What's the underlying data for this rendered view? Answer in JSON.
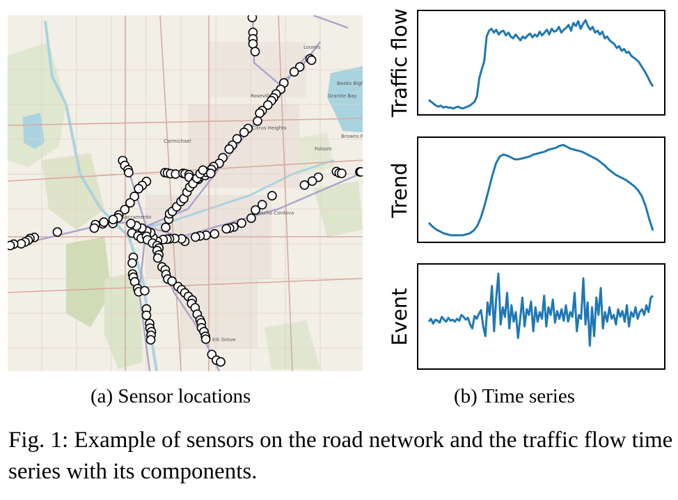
{
  "map": {
    "labels": [
      "Loomis",
      "Roseville",
      "Citrus Heights",
      "Folsom",
      "Granite Bay",
      "Beeks Bight",
      "Browns Ravine",
      "Rancho Cordova",
      "Sacramento",
      "Elk Grove",
      "Carmichael"
    ],
    "colors": {
      "land": "#f2efe6",
      "water": "#a9d3df",
      "park": "#cfe0b8",
      "highway": "#a9a3cf",
      "road": "#d9a9a0"
    },
    "sensors": [
      [
        0.689,
        0.006
      ],
      [
        0.691,
        0.048
      ],
      [
        0.691,
        0.066
      ],
      [
        0.691,
        0.08
      ],
      [
        0.697,
        0.102
      ],
      [
        0.852,
        0.122
      ],
      [
        0.856,
        0.126
      ],
      [
        0.823,
        0.145
      ],
      [
        0.807,
        0.159
      ],
      [
        0.778,
        0.19
      ],
      [
        0.769,
        0.208
      ],
      [
        0.756,
        0.221
      ],
      [
        0.749,
        0.232
      ],
      [
        0.743,
        0.24
      ],
      [
        0.733,
        0.252
      ],
      [
        0.717,
        0.268
      ],
      [
        0.71,
        0.275
      ],
      [
        0.704,
        0.297
      ],
      [
        0.677,
        0.318
      ],
      [
        0.666,
        0.329
      ],
      [
        0.646,
        0.347
      ],
      [
        0.633,
        0.365
      ],
      [
        0.624,
        0.376
      ],
      [
        0.606,
        0.4
      ],
      [
        0.596,
        0.416
      ],
      [
        0.58,
        0.425
      ],
      [
        0.574,
        0.433
      ],
      [
        0.558,
        0.441
      ],
      [
        0.537,
        0.461
      ],
      [
        0.324,
        0.408
      ],
      [
        0.33,
        0.422
      ],
      [
        0.339,
        0.434
      ],
      [
        0.341,
        0.442
      ],
      [
        0.391,
        0.467
      ],
      [
        0.379,
        0.478
      ],
      [
        0.369,
        0.487
      ],
      [
        0.357,
        0.509
      ],
      [
        0.345,
        0.527
      ],
      [
        0.33,
        0.546
      ],
      [
        0.313,
        0.561
      ],
      [
        0.298,
        0.575
      ],
      [
        0.296,
        0.585
      ],
      [
        0.268,
        0.586
      ],
      [
        0.247,
        0.588
      ],
      [
        0.244,
        0.598
      ],
      [
        0.14,
        0.609
      ],
      [
        0.075,
        0.624
      ],
      [
        0.063,
        0.627
      ],
      [
        0.058,
        0.632
      ],
      [
        0.049,
        0.637
      ],
      [
        0.038,
        0.642
      ],
      [
        0.017,
        0.643
      ],
      [
        0.007,
        0.647
      ],
      [
        0.443,
        0.442
      ],
      [
        0.45,
        0.443
      ],
      [
        0.459,
        0.445
      ],
      [
        0.473,
        0.446
      ],
      [
        0.494,
        0.444
      ],
      [
        0.5,
        0.445
      ],
      [
        0.511,
        0.448
      ],
      [
        0.511,
        0.455
      ],
      [
        0.529,
        0.463
      ],
      [
        0.541,
        0.454
      ],
      [
        0.556,
        0.45
      ],
      [
        0.56,
        0.441
      ],
      [
        0.572,
        0.444
      ],
      [
        0.926,
        0.439
      ],
      [
        0.934,
        0.443
      ],
      [
        0.941,
        0.444
      ],
      [
        0.992,
        0.44
      ],
      [
        0.995,
        0.44
      ],
      [
        0.875,
        0.455
      ],
      [
        0.858,
        0.466
      ],
      [
        0.836,
        0.477
      ],
      [
        0.745,
        0.507
      ],
      [
        0.717,
        0.532
      ],
      [
        0.698,
        0.547
      ],
      [
        0.686,
        0.57
      ],
      [
        0.659,
        0.584
      ],
      [
        0.637,
        0.595
      ],
      [
        0.625,
        0.598
      ],
      [
        0.616,
        0.6
      ],
      [
        0.583,
        0.614
      ],
      [
        0.559,
        0.618
      ],
      [
        0.542,
        0.62
      ],
      [
        0.529,
        0.623
      ],
      [
        0.499,
        0.635
      ],
      [
        0.49,
        0.628
      ],
      [
        0.471,
        0.627
      ],
      [
        0.456,
        0.628
      ],
      [
        0.449,
        0.629
      ],
      [
        0.438,
        0.63
      ],
      [
        0.422,
        0.635
      ],
      [
        0.409,
        0.624
      ],
      [
        0.403,
        0.611
      ],
      [
        0.392,
        0.606
      ],
      [
        0.378,
        0.598
      ],
      [
        0.363,
        0.592
      ],
      [
        0.347,
        0.585
      ],
      [
        0.311,
        0.569
      ],
      [
        0.297,
        0.574
      ],
      [
        0.271,
        0.581
      ],
      [
        0.445,
        0.596
      ],
      [
        0.454,
        0.573
      ],
      [
        0.456,
        0.558
      ],
      [
        0.464,
        0.551
      ],
      [
        0.476,
        0.538
      ],
      [
        0.488,
        0.523
      ],
      [
        0.496,
        0.515
      ],
      [
        0.505,
        0.497
      ],
      [
        0.513,
        0.483
      ],
      [
        0.522,
        0.473
      ],
      [
        0.533,
        0.458
      ],
      [
        0.542,
        0.445
      ],
      [
        0.55,
        0.435
      ],
      [
        0.35,
        0.612
      ],
      [
        0.367,
        0.62
      ],
      [
        0.376,
        0.627
      ],
      [
        0.391,
        0.621
      ],
      [
        0.394,
        0.631
      ],
      [
        0.408,
        0.64
      ],
      [
        0.421,
        0.647
      ],
      [
        0.426,
        0.654
      ],
      [
        0.421,
        0.661
      ],
      [
        0.426,
        0.673
      ],
      [
        0.423,
        0.682
      ],
      [
        0.435,
        0.707
      ],
      [
        0.444,
        0.715
      ],
      [
        0.446,
        0.728
      ],
      [
        0.451,
        0.741
      ],
      [
        0.463,
        0.747
      ],
      [
        0.48,
        0.762
      ],
      [
        0.49,
        0.771
      ],
      [
        0.499,
        0.78
      ],
      [
        0.509,
        0.79
      ],
      [
        0.52,
        0.8
      ],
      [
        0.518,
        0.81
      ],
      [
        0.528,
        0.822
      ],
      [
        0.534,
        0.84
      ],
      [
        0.542,
        0.856
      ],
      [
        0.545,
        0.864
      ],
      [
        0.546,
        0.878
      ],
      [
        0.553,
        0.889
      ],
      [
        0.557,
        0.902
      ],
      [
        0.558,
        0.91
      ],
      [
        0.575,
        0.953
      ],
      [
        0.588,
        0.969
      ],
      [
        0.6,
        0.974
      ],
      [
        0.354,
        0.68
      ],
      [
        0.351,
        0.696
      ],
      [
        0.352,
        0.727
      ],
      [
        0.354,
        0.736
      ],
      [
        0.358,
        0.749
      ],
      [
        0.366,
        0.768
      ],
      [
        0.369,
        0.777
      ],
      [
        0.386,
        0.774
      ],
      [
        0.391,
        0.825
      ],
      [
        0.391,
        0.843
      ],
      [
        0.4,
        0.866
      ],
      [
        0.401,
        0.879
      ],
      [
        0.405,
        0.889
      ],
      [
        0.404,
        0.899
      ],
      [
        0.403,
        0.912
      ]
    ]
  },
  "traffic_flow": [
    12,
    10,
    8,
    6,
    5,
    6,
    4,
    5,
    4,
    4,
    3,
    4,
    5,
    4,
    3,
    4,
    5,
    6,
    8,
    10,
    16,
    35,
    44,
    52,
    78,
    84,
    86,
    82,
    85,
    80,
    83,
    84,
    79,
    82,
    78,
    76,
    80,
    77,
    74,
    78,
    76,
    79,
    81,
    77,
    80,
    78,
    83,
    79,
    82,
    85,
    80,
    86,
    83,
    84,
    88,
    82,
    85,
    87,
    90,
    84,
    92,
    89,
    94,
    86,
    91,
    95,
    89,
    85,
    88,
    82,
    84,
    80,
    83,
    76,
    78,
    74,
    72,
    70,
    66,
    68,
    63,
    65,
    61,
    62,
    58,
    56,
    54,
    52,
    48,
    44,
    40,
    35,
    30,
    26
  ],
  "trend": [
    16,
    12,
    9,
    7,
    5,
    4,
    3,
    3,
    3,
    3,
    4,
    5,
    8,
    13,
    22,
    35,
    50,
    65,
    78,
    85,
    87,
    86,
    84,
    82,
    82,
    83,
    84,
    85,
    87,
    88,
    89,
    90,
    92,
    93,
    94,
    96,
    97,
    95,
    93,
    92,
    91,
    90,
    88,
    86,
    84,
    82,
    79,
    76,
    72,
    69,
    66,
    64,
    62,
    60,
    57,
    54,
    50,
    44,
    34,
    20,
    8
  ],
  "event": [
    45,
    48,
    43,
    47,
    46,
    44,
    50,
    47,
    45,
    49,
    46,
    47,
    45,
    48,
    46,
    52,
    50,
    47,
    49,
    42,
    38,
    51,
    48,
    53,
    57,
    40,
    30,
    65,
    52,
    82,
    35,
    70,
    95,
    42,
    60,
    50,
    75,
    38,
    62,
    45,
    55,
    28,
    48,
    70,
    40,
    58,
    52,
    66,
    35,
    60,
    45,
    55,
    48,
    72,
    40,
    60,
    52,
    68,
    44,
    56,
    48,
    58,
    46,
    62,
    45,
    55,
    50,
    75,
    35,
    52,
    48,
    90,
    42,
    65,
    20,
    60,
    30,
    70,
    52,
    80,
    38,
    55,
    45,
    60,
    48,
    52,
    42,
    58,
    50,
    56,
    45,
    62,
    40,
    55,
    50,
    60,
    48,
    55,
    58,
    52,
    62,
    55,
    70,
    72
  ]
}
